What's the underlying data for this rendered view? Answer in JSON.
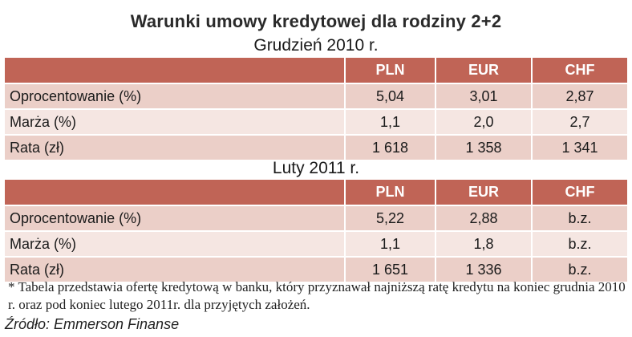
{
  "title": "Warunki umowy kredytowej dla rodziny 2+2",
  "sections": [
    {
      "title": "Grudzień 2010 r.",
      "headers": [
        "",
        "PLN",
        "EUR",
        "CHF"
      ],
      "rows": [
        [
          "Oprocentowanie (%)",
          "5,04",
          "3,01",
          "2,87"
        ],
        [
          "Marża (%)",
          "1,1",
          "2,0",
          "2,7"
        ],
        [
          "Rata (zł)",
          "1 618",
          "1 358",
          "1 341"
        ]
      ]
    },
    {
      "title": "Luty 2011 r.",
      "headers": [
        "",
        "PLN",
        "EUR",
        "CHF"
      ],
      "rows": [
        [
          "Oprocentowanie (%)",
          "5,22",
          "2,88",
          "b.z."
        ],
        [
          "Marża (%)",
          "1,1",
          "1,8",
          "b.z."
        ],
        [
          "Rata (zł)",
          "1 651",
          "1 336",
          "b.z."
        ]
      ]
    }
  ],
  "footnote": "* Tabela przedstawia ofertę kredytową w banku, który przyznawał najniższą ratę kredytu na koniec grudnia 2010 r. oraz pod koniec lutego 2011r. dla przyjętych założeń.",
  "source": "Źródło: Emmerson Finanse"
}
